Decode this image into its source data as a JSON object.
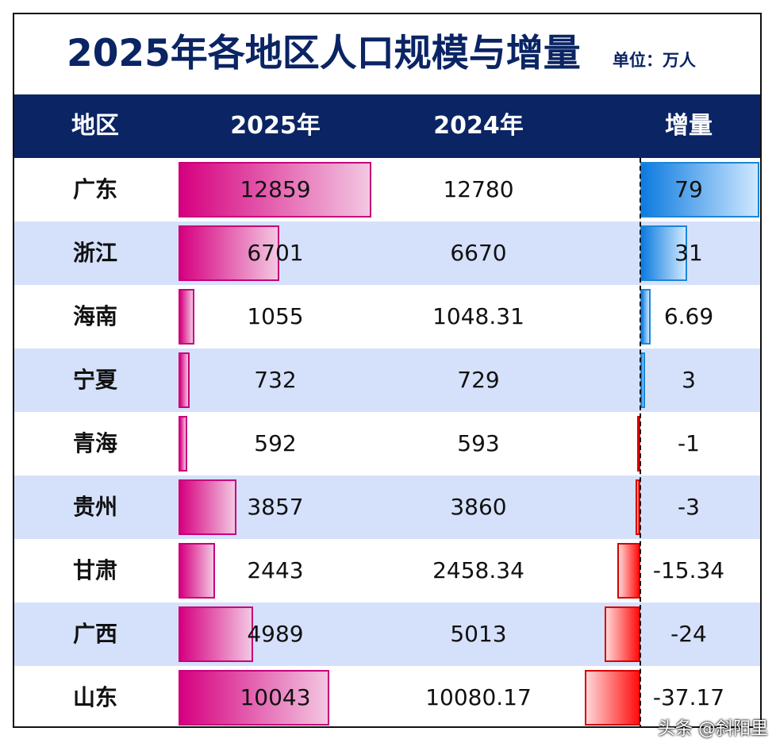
{
  "chart_data": {
    "type": "table",
    "title": "2025年各地区人口规模与增量",
    "unit": "单位：万人",
    "columns": [
      "地区",
      "2025年",
      "2024年",
      "增量"
    ],
    "rows": [
      {
        "region": "广东",
        "y2025": "12859",
        "y2024": "12780",
        "increase": "79"
      },
      {
        "region": "浙江",
        "y2025": "6701",
        "y2024": "6670",
        "increase": "31"
      },
      {
        "region": "海南",
        "y2025": "1055",
        "y2024": "1048.31",
        "increase": "6.69"
      },
      {
        "region": "宁夏",
        "y2025": "732",
        "y2024": "729",
        "increase": "3"
      },
      {
        "region": "青海",
        "y2025": "592",
        "y2024": "593",
        "increase": "-1"
      },
      {
        "region": "贵州",
        "y2025": "3857",
        "y2024": "3860",
        "increase": "-3"
      },
      {
        "region": "甘肃",
        "y2025": "2443",
        "y2024": "2458.34",
        "increase": "-15.34"
      },
      {
        "region": "广西",
        "y2025": "4989",
        "y2024": "5013",
        "increase": "-24"
      },
      {
        "region": "山东",
        "y2025": "10043",
        "y2024": "10080.17",
        "increase": "-37.17"
      }
    ],
    "bar_2025_max": 12859,
    "increase_pos_max": 79,
    "increase_neg_max": 37.17
  },
  "colors": {
    "title": "#0a2464",
    "header_bg": "#0a2464",
    "alt_row": "#d5e1fb",
    "bar_2025": "#d6007f",
    "bar_positive": "#0d7be0",
    "bar_negative": "#ff0d0d"
  },
  "watermark": "头条 @斜阳里"
}
